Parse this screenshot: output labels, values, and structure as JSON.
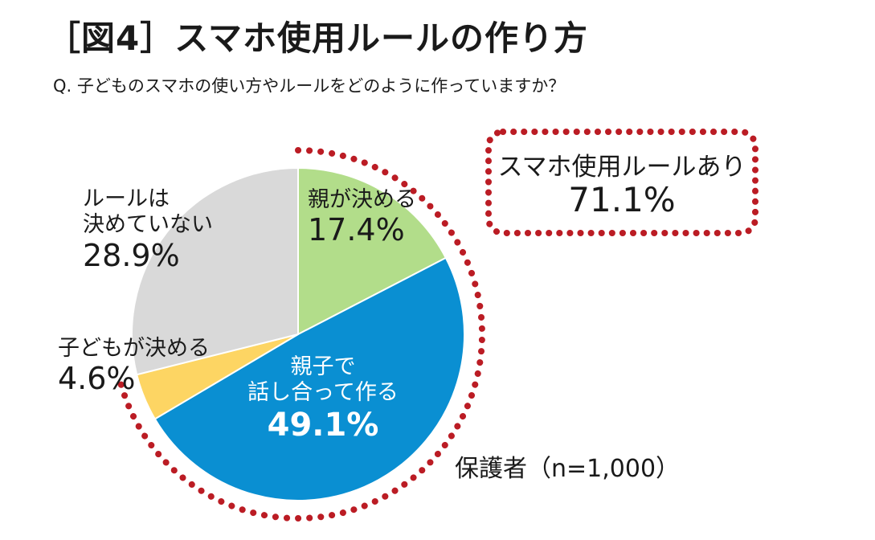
{
  "title": "［図4］スマホ使用ルールの作り方",
  "subtitle": "Q. 子どものスマホの使い方やルールをどのように作っていますか？",
  "sample_note": "保護者（n=1,000）",
  "highlight_box": {
    "label": "スマホ使用ルールあり",
    "value": "71.1%"
  },
  "slice_labels": {
    "oya": {
      "name": "親が決める",
      "value": "17.4%"
    },
    "oyako": {
      "name_line1": "親子で",
      "name_line2": "話し合って作る",
      "value": "49.1%"
    },
    "ko": {
      "name": "子どもが決める",
      "value": "4.6%"
    },
    "none": {
      "name_line1": "ルールは",
      "name_line2": "決めていない",
      "value": "28.9%"
    }
  },
  "colors": {
    "oya": "#b2dd8a",
    "oyako": "#0a8fd2",
    "ko": "#fdd563",
    "none": "#d9d9d9",
    "dotted_outline": "#bb1c24"
  },
  "chart_data": {
    "type": "pie",
    "title": "［図4］スマホ使用ルールの作り方",
    "categories": [
      "親が決める",
      "親子で話し合って作る",
      "子どもが決める",
      "ルールは決めていない"
    ],
    "values": [
      17.4,
      49.1,
      4.6,
      28.9
    ],
    "unit": "%",
    "start": "12 o'clock",
    "direction": "clockwise",
    "highlight": {
      "categories": [
        "親が決める",
        "親子で話し合って作る",
        "子どもが決める"
      ],
      "total": 71.1
    },
    "n": 1000
  }
}
